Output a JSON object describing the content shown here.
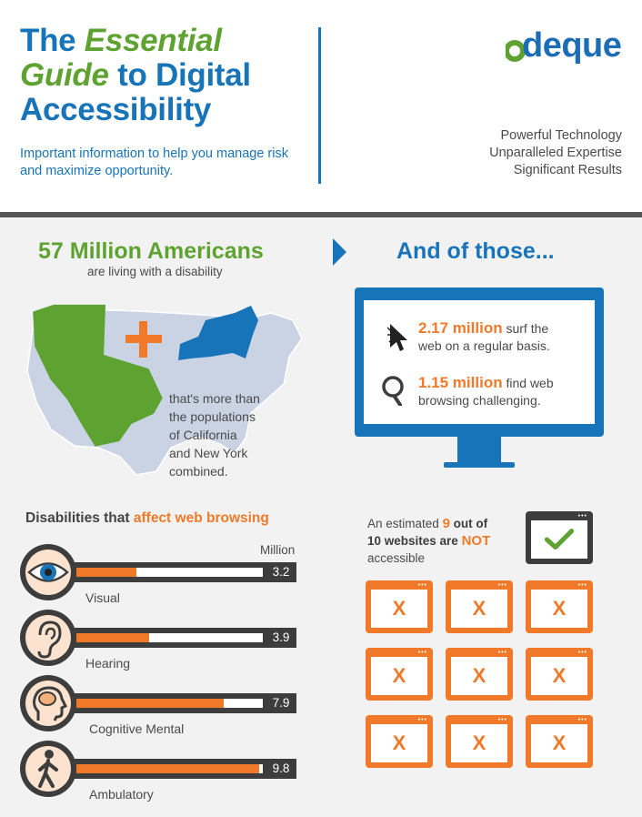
{
  "header": {
    "title_the": "The",
    "title_essential": "Essential",
    "title_guide": "Guide",
    "title_to_digital": "to Digital",
    "title_accessibility": "Accessibility",
    "subtitle": "Important information to help you manage risk and maximize opportunity.",
    "logo": "deque",
    "tagline": [
      "Powerful Technology",
      "Unparalleled Expertise",
      "Significant Results"
    ]
  },
  "stats": {
    "headline": "57 Million Americans",
    "subheadline": "are living with a disability",
    "map_caption": [
      "that's more than",
      "the populations",
      "of California",
      "and New York",
      "combined."
    ],
    "and_of_those": "And of those...",
    "surf_number": "2.17 million",
    "surf_text_1": "surf the",
    "surf_text_2": "web on a regular basis.",
    "challenge_number": "1.15 million",
    "challenge_text_1": "find web",
    "challenge_text_2": "browsing challenging."
  },
  "disabilities": {
    "title_prefix": "Disabilities that",
    "title_highlight": "affect web browsing",
    "unit_label": "Million",
    "max_value": 10,
    "items": [
      {
        "label": "Visual",
        "value": 3.2,
        "value_text": "3.2",
        "icon": "eye-icon"
      },
      {
        "label": "Hearing",
        "value": 3.9,
        "value_text": "3.9",
        "icon": "ear-icon"
      },
      {
        "label": "Cognitive Mental",
        "value": 7.9,
        "value_text": "7.9",
        "icon": "brain-head-icon"
      },
      {
        "label": "Ambulatory",
        "value": 9.8,
        "value_text": "9.8",
        "icon": "walking-person-icon"
      }
    ]
  },
  "websites": {
    "est_prefix": "An estimated",
    "est_number": "9",
    "est_mid": "out of",
    "est_line2": "10 websites are",
    "est_not": "NOT",
    "est_line3": "accessible",
    "x_mark": "X",
    "window_dots": "•••",
    "accessible_count": 1,
    "inaccessible_count": 9
  },
  "colors": {
    "blue": "#1874b8",
    "green": "#5ea332",
    "orange": "#f07a2a",
    "dark": "#3d3d3d"
  }
}
